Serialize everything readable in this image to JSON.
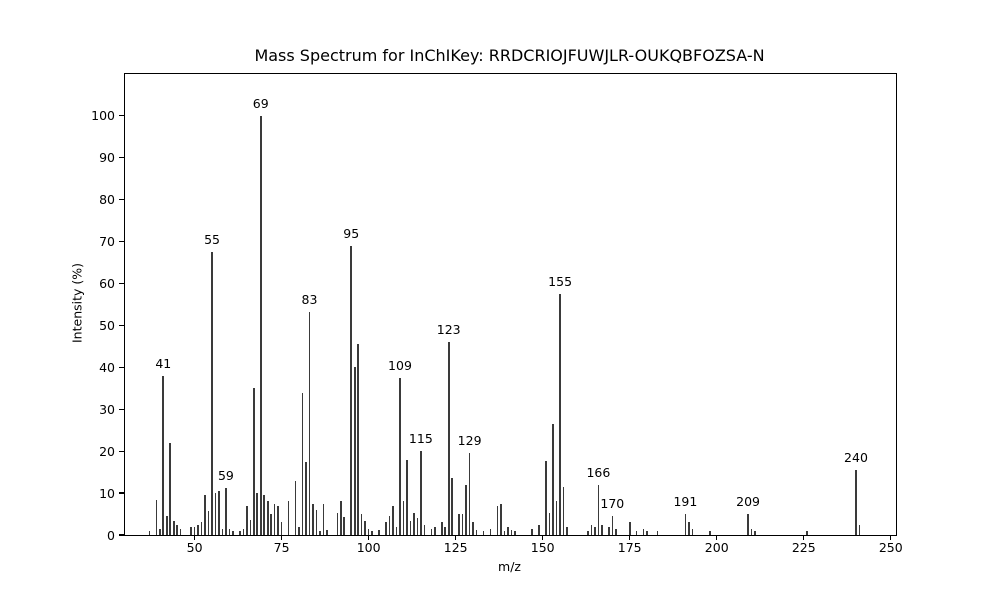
{
  "chart_data": {
    "type": "bar",
    "subtype": "mass-spectrum",
    "title": "Mass Spectrum for InChIKey: RRDCRIOJFUWJLR-OUKQBFOZSA-N",
    "xlabel": "m/z",
    "ylabel": "Intensity (%)",
    "xlim": [
      30,
      251.5
    ],
    "ylim": [
      0,
      110
    ],
    "x_ticks": [
      50,
      75,
      100,
      125,
      150,
      175,
      200,
      225,
      250
    ],
    "y_ticks": [
      0,
      10,
      20,
      30,
      40,
      50,
      60,
      70,
      80,
      90,
      100
    ],
    "grid": false,
    "legend": null,
    "bar_color": "#3a3a3a",
    "background_color": "#ffffff",
    "peaks": [
      [
        37,
        1.0
      ],
      [
        39,
        8.3
      ],
      [
        40,
        1.5
      ],
      [
        41,
        38.0
      ],
      [
        42,
        4.5
      ],
      [
        43,
        22.0
      ],
      [
        44,
        3.3
      ],
      [
        45,
        2.3
      ],
      [
        46,
        1.5
      ],
      [
        49,
        2.0
      ],
      [
        50,
        2.0
      ],
      [
        51,
        2.5
      ],
      [
        52,
        3.0
      ],
      [
        53,
        9.5
      ],
      [
        54,
        5.7
      ],
      [
        55,
        67.5
      ],
      [
        56,
        10.0
      ],
      [
        57,
        10.5
      ],
      [
        58,
        1.5
      ],
      [
        59,
        11.3
      ],
      [
        60,
        1.5
      ],
      [
        61,
        1.0
      ],
      [
        63,
        1.0
      ],
      [
        64,
        1.5
      ],
      [
        65,
        7.0
      ],
      [
        66,
        3.5
      ],
      [
        67,
        35.0
      ],
      [
        68,
        10.0
      ],
      [
        69,
        100.0
      ],
      [
        70,
        9.5
      ],
      [
        71,
        8.0
      ],
      [
        72,
        5.0
      ],
      [
        73,
        7.5
      ],
      [
        74,
        7.0
      ],
      [
        75,
        3.0
      ],
      [
        77,
        8.0
      ],
      [
        79,
        13.0
      ],
      [
        80,
        2.0
      ],
      [
        81,
        34.0
      ],
      [
        82,
        17.5
      ],
      [
        83,
        53.3
      ],
      [
        84,
        7.3
      ],
      [
        85,
        6.0
      ],
      [
        86,
        1.0
      ],
      [
        87,
        7.5
      ],
      [
        88,
        1.2
      ],
      [
        91,
        5.3
      ],
      [
        92,
        8.0
      ],
      [
        93,
        4.3
      ],
      [
        95,
        69.0
      ],
      [
        96,
        40.0
      ],
      [
        97,
        45.5
      ],
      [
        98,
        5.0
      ],
      [
        99,
        3.3
      ],
      [
        100,
        1.5
      ],
      [
        101,
        1.0
      ],
      [
        103,
        1.2
      ],
      [
        105,
        3.2
      ],
      [
        106,
        4.5
      ],
      [
        107,
        7.0
      ],
      [
        108,
        2.0
      ],
      [
        109,
        37.5
      ],
      [
        110,
        8.0
      ],
      [
        111,
        18.0
      ],
      [
        112,
        3.3
      ],
      [
        113,
        5.3
      ],
      [
        114,
        4.0
      ],
      [
        115,
        20.0
      ],
      [
        116,
        2.5
      ],
      [
        118,
        1.5
      ],
      [
        119,
        2.0
      ],
      [
        121,
        3.0
      ],
      [
        122,
        2.0
      ],
      [
        123,
        46.0
      ],
      [
        124,
        13.5
      ],
      [
        126,
        5.0
      ],
      [
        127,
        5.0
      ],
      [
        128,
        12.0
      ],
      [
        129,
        19.5
      ],
      [
        130,
        3.0
      ],
      [
        131,
        1.3
      ],
      [
        133,
        1.0
      ],
      [
        135,
        1.5
      ],
      [
        137,
        7.0
      ],
      [
        138,
        7.5
      ],
      [
        139,
        1.0
      ],
      [
        140,
        2.0
      ],
      [
        141,
        1.3
      ],
      [
        142,
        1.0
      ],
      [
        147,
        1.5
      ],
      [
        149,
        2.3
      ],
      [
        151,
        17.6
      ],
      [
        152,
        5.2
      ],
      [
        153,
        26.5
      ],
      [
        154,
        8.0
      ],
      [
        155,
        57.5
      ],
      [
        156,
        11.5
      ],
      [
        157,
        2.0
      ],
      [
        163,
        1.0
      ],
      [
        164,
        2.5
      ],
      [
        165,
        2.0
      ],
      [
        166,
        12.0
      ],
      [
        167,
        2.5
      ],
      [
        169,
        2.0
      ],
      [
        170,
        4.5
      ],
      [
        171,
        1.5
      ],
      [
        175,
        3.0
      ],
      [
        177,
        1.0
      ],
      [
        179,
        1.5
      ],
      [
        180,
        1.0
      ],
      [
        183,
        1.0
      ],
      [
        191,
        5.0
      ],
      [
        192,
        3.0
      ],
      [
        193,
        1.5
      ],
      [
        198,
        1.0
      ],
      [
        209,
        5.0
      ],
      [
        210,
        1.5
      ],
      [
        211,
        1.0
      ],
      [
        226,
        1.0
      ],
      [
        240,
        15.5
      ],
      [
        241,
        2.5
      ]
    ],
    "labeled_peaks": [
      41,
      55,
      59,
      69,
      83,
      95,
      109,
      115,
      123,
      129,
      155,
      166,
      170,
      191,
      209,
      240
    ]
  }
}
